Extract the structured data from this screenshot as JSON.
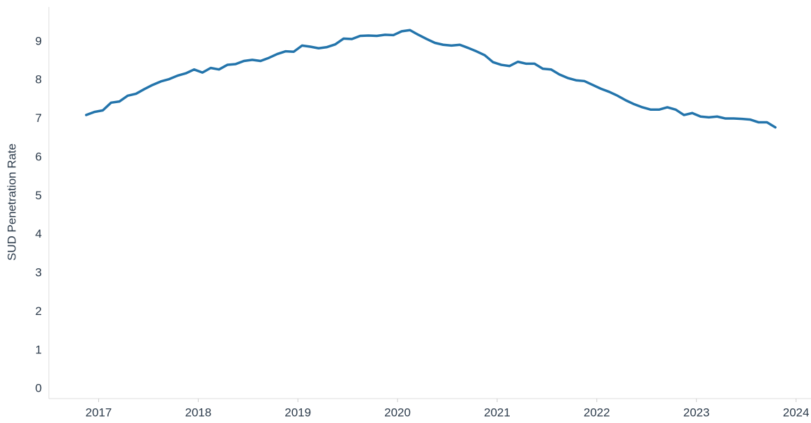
{
  "chart_data": {
    "type": "line",
    "y_label": "SUD Penetration Rate",
    "x": [
      2016.875,
      2016.958,
      2017.042,
      2017.125,
      2017.208,
      2017.292,
      2017.375,
      2017.458,
      2017.542,
      2017.625,
      2017.708,
      2017.792,
      2017.875,
      2017.958,
      2018.042,
      2018.125,
      2018.208,
      2018.292,
      2018.375,
      2018.458,
      2018.542,
      2018.625,
      2018.708,
      2018.792,
      2018.875,
      2018.958,
      2019.042,
      2019.125,
      2019.208,
      2019.292,
      2019.375,
      2019.458,
      2019.542,
      2019.625,
      2019.708,
      2019.792,
      2019.875,
      2019.958,
      2020.042,
      2020.125,
      2020.208,
      2020.292,
      2020.375,
      2020.458,
      2020.542,
      2020.625,
      2020.708,
      2020.792,
      2020.875,
      2020.958,
      2021.042,
      2021.125,
      2021.208,
      2021.292,
      2021.375,
      2021.458,
      2021.542,
      2021.625,
      2021.708,
      2021.792,
      2021.875,
      2021.958,
      2022.042,
      2022.125,
      2022.208,
      2022.292,
      2022.375,
      2022.458,
      2022.542,
      2022.625,
      2022.708,
      2022.792,
      2022.875,
      2022.958,
      2023.042,
      2023.125,
      2023.208,
      2023.292,
      2023.375,
      2023.458,
      2023.542,
      2023.625,
      2023.708,
      2023.792
    ],
    "series": [
      {
        "color": "#2374ab",
        "values": [
          7.1,
          7.18,
          7.22,
          7.42,
          7.45,
          7.6,
          7.65,
          7.77,
          7.88,
          7.97,
          8.03,
          8.12,
          8.18,
          8.28,
          8.2,
          8.32,
          8.28,
          8.4,
          8.42,
          8.5,
          8.53,
          8.5,
          8.58,
          8.68,
          8.75,
          8.74,
          8.9,
          8.87,
          8.83,
          8.86,
          8.93,
          9.08,
          9.07,
          9.15,
          9.16,
          9.15,
          9.18,
          9.17,
          9.27,
          9.3,
          9.18,
          9.07,
          8.97,
          8.92,
          8.9,
          8.92,
          8.84,
          8.75,
          8.65,
          8.47,
          8.4,
          8.37,
          8.48,
          8.43,
          8.43,
          8.3,
          8.28,
          8.15,
          8.06,
          8.0,
          7.98,
          7.88,
          7.78,
          7.7,
          7.6,
          7.48,
          7.38,
          7.3,
          7.24,
          7.24,
          7.3,
          7.24,
          7.1,
          7.15,
          7.06,
          7.04,
          7.06,
          7.01,
          7.01,
          7.0,
          6.98,
          6.91,
          6.91,
          6.78
        ]
      }
    ],
    "xlim": [
      2016.5,
      2024.15
    ],
    "xticks": [
      2017,
      2018,
      2019,
      2020,
      2021,
      2022,
      2023,
      2024
    ],
    "ylim": [
      -0.25,
      9.9
    ],
    "yticks": [
      0,
      1,
      2,
      3,
      4,
      5,
      6,
      7,
      8,
      9
    ],
    "grid": false
  }
}
